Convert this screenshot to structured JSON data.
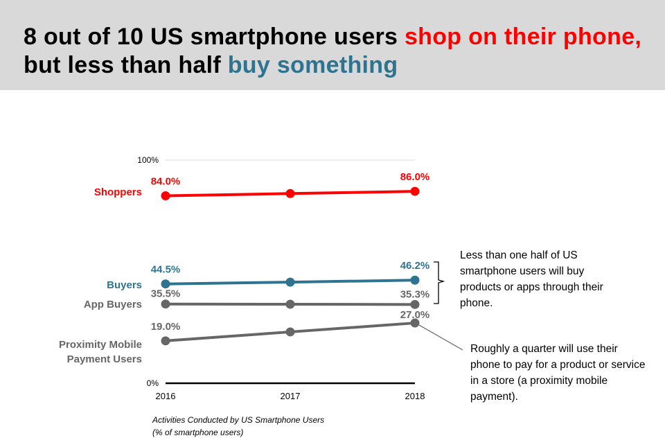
{
  "headline": {
    "part1": "8 out of 10 US smartphone users ",
    "part2": "shop on their phone,",
    "part3": " but less than half ",
    "part4": "buy something",
    "color_black": "#000000",
    "color_red": "#ff0000",
    "color_teal": "#2e7491"
  },
  "chart_data": {
    "type": "line",
    "x": [
      "2016",
      "2017",
      "2018"
    ],
    "ylim": [
      0,
      100
    ],
    "y_ticks": [
      "0%",
      "100%"
    ],
    "series": [
      {
        "name": "Shoppers",
        "values": [
          84.0,
          85.0,
          86.0
        ],
        "labels": [
          "84.0%",
          null,
          "86.0%"
        ],
        "color": "#ff0000"
      },
      {
        "name": "Buyers",
        "values": [
          44.5,
          45.3,
          46.2
        ],
        "labels": [
          "44.5%",
          null,
          "46.2%"
        ],
        "color": "#2e7491"
      },
      {
        "name": "App Buyers",
        "values": [
          35.5,
          35.4,
          35.3
        ],
        "labels": [
          "35.5%",
          null,
          "35.3%"
        ],
        "color": "#666666"
      },
      {
        "name": "Proximity Mobile Payment Users",
        "name_lines": [
          "Proximity Mobile",
          "Payment Users"
        ],
        "values": [
          19.0,
          23.0,
          27.0
        ],
        "labels": [
          "19.0%",
          null,
          "27.0%"
        ],
        "color": "#666666"
      }
    ]
  },
  "annotations": {
    "note1": "Less than one half of US smartphone users will buy products or apps through their phone.",
    "note2": "Roughly a quarter will use their phone to pay for a product or service in a store (a proximity mobile payment)."
  },
  "caption": {
    "line1": "Activities Conducted by US Smartphone Users",
    "line2": "(% of smartphone users)"
  }
}
